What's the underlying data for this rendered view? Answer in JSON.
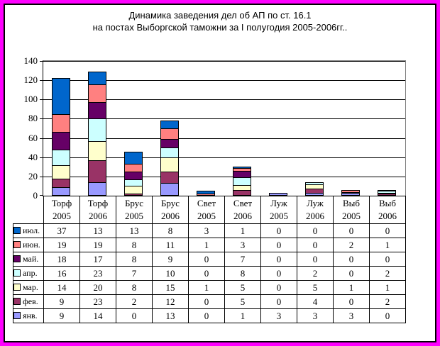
{
  "title": {
    "line1": "Динамика заведения дел об АП по ст. 16.1",
    "line2": "на постах Выборгской таможни за I полугодия 2005-2006гг.."
  },
  "colors": {
    "outer_border": "#FF00FF",
    "inner_border": "#000000",
    "plot_border": "#808080",
    "gridline": "#000000",
    "background": "#FFFFFF"
  },
  "chart_data": {
    "type": "bar",
    "stacked": true,
    "title": "Динамика заведения дел об АП по ст. 16.1 на постах Выборгской таможни за I полугодия 2005-2006гг..",
    "xlabel": "",
    "ylabel": "",
    "ylim": [
      0,
      140
    ],
    "ytick_step": 20,
    "grid": true,
    "legend_position": "table-left",
    "categories": [
      {
        "label": "Торф",
        "year": "2005"
      },
      {
        "label": "Торф",
        "year": "2006"
      },
      {
        "label": "Брус",
        "year": "2005"
      },
      {
        "label": "Брус",
        "year": "2006"
      },
      {
        "label": "Свет",
        "year": "2005"
      },
      {
        "label": "Свет",
        "year": "2006"
      },
      {
        "label": "Луж",
        "year": "2005"
      },
      {
        "label": "Луж",
        "year": "2006"
      },
      {
        "label": "Выб",
        "year": "2005"
      },
      {
        "label": "Выб",
        "year": "2006"
      }
    ],
    "series": [
      {
        "name": "июл.",
        "color": "#0066CC",
        "values": [
          37,
          13,
          13,
          8,
          3,
          1,
          0,
          0,
          0,
          0
        ]
      },
      {
        "name": "июн.",
        "color": "#FF8080",
        "values": [
          19,
          19,
          8,
          11,
          1,
          3,
          0,
          0,
          2,
          1
        ]
      },
      {
        "name": "май.",
        "color": "#660066",
        "values": [
          18,
          17,
          8,
          9,
          0,
          7,
          0,
          0,
          0,
          0
        ]
      },
      {
        "name": "апр.",
        "color": "#CCFFFF",
        "values": [
          16,
          23,
          7,
          10,
          0,
          8,
          0,
          2,
          0,
          2
        ]
      },
      {
        "name": "мар.",
        "color": "#FFFFCC",
        "values": [
          14,
          20,
          8,
          15,
          1,
          5,
          0,
          5,
          1,
          1
        ]
      },
      {
        "name": "фев.",
        "color": "#993366",
        "values": [
          9,
          23,
          2,
          12,
          0,
          5,
          0,
          4,
          0,
          2
        ]
      },
      {
        "name": "янв.",
        "color": "#9999FF",
        "values": [
          9,
          14,
          0,
          13,
          0,
          1,
          3,
          3,
          3,
          0
        ]
      }
    ],
    "stack_order_bottom_to_top": [
      "янв.",
      "фев.",
      "мар.",
      "апр.",
      "май.",
      "июн.",
      "июл."
    ]
  }
}
